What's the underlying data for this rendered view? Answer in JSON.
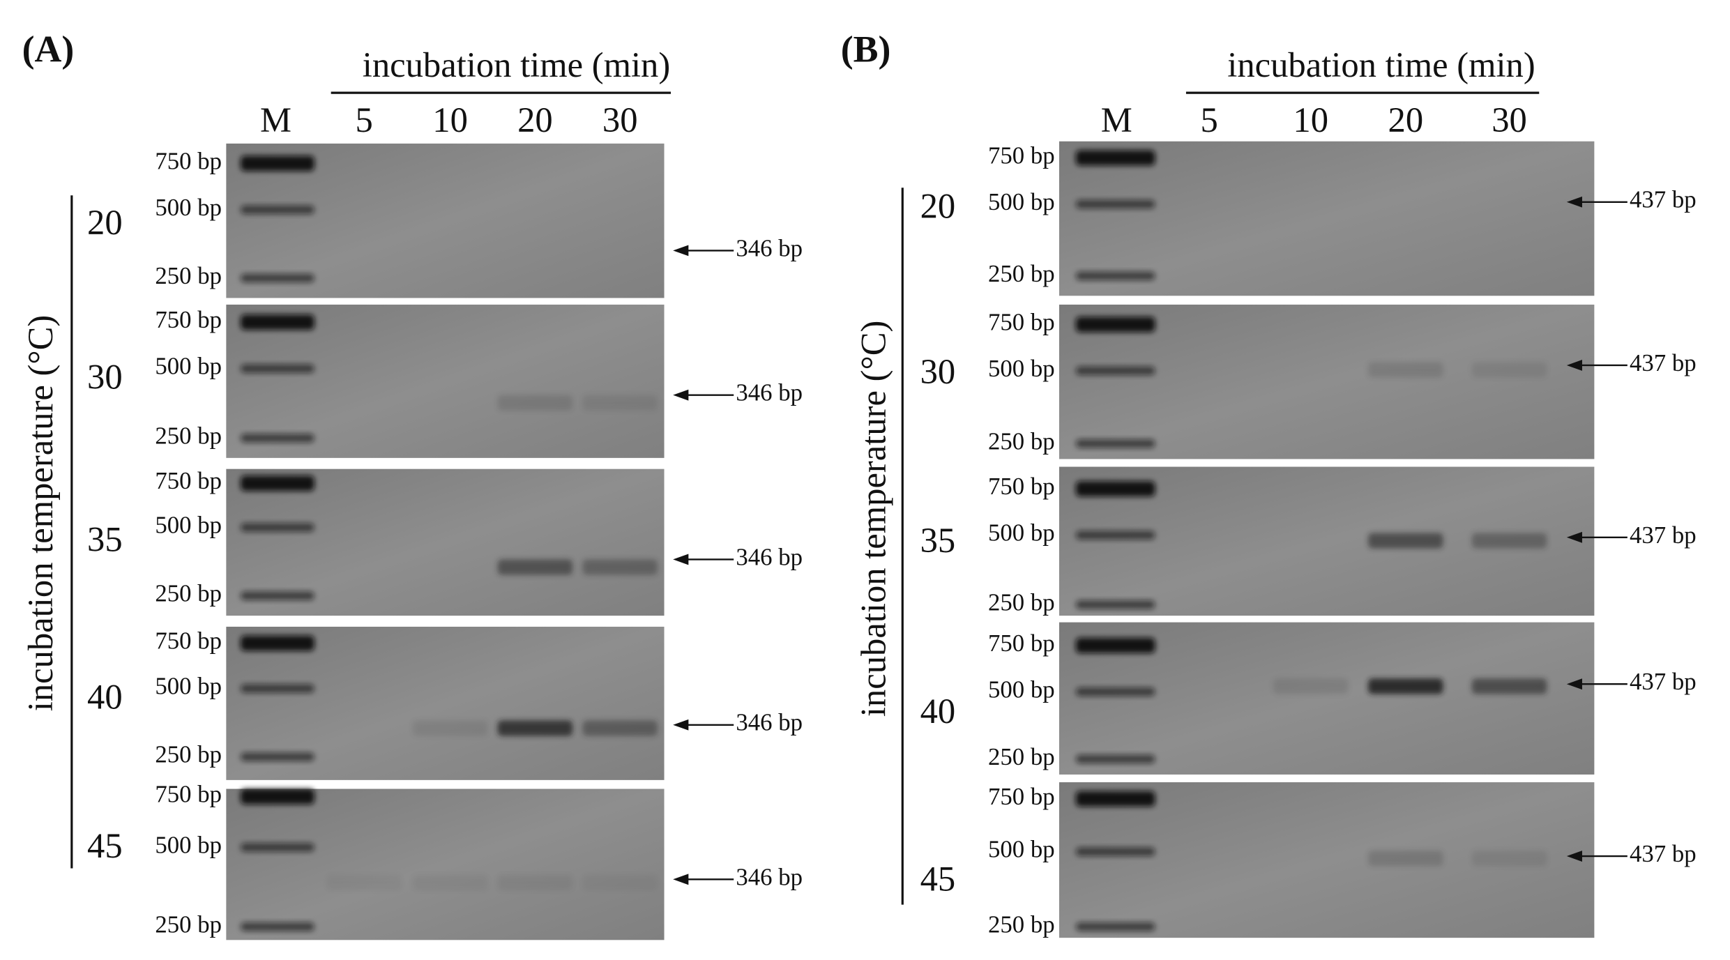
{
  "panels": [
    {
      "label": "(A)",
      "time_label": "incubation time (min)",
      "marker_label": "M",
      "times": [
        "5",
        "10",
        "20",
        "30"
      ],
      "temperature_label": "incubation temperature (°C)",
      "gels": [
        {
          "temperature": "20",
          "ladder": [
            "750 bp",
            "500 bp",
            "250 bp"
          ],
          "product": "346 bp"
        },
        {
          "temperature": "30",
          "ladder": [
            "750 bp",
            "500 bp",
            "250 bp"
          ],
          "product": "346 bp"
        },
        {
          "temperature": "35",
          "ladder": [
            "750 bp",
            "500 bp",
            "250 bp"
          ],
          "product": "346 bp"
        },
        {
          "temperature": "40",
          "ladder": [
            "750 bp",
            "500 bp",
            "250 bp"
          ],
          "product": "346 bp"
        },
        {
          "temperature": "45",
          "ladder": [
            "750 bp",
            "500 bp",
            "250 bp"
          ],
          "product": "346 bp"
        }
      ]
    },
    {
      "label": "(B)",
      "time_label": "incubation time (min)",
      "marker_label": "M",
      "times": [
        "5",
        "10",
        "20",
        "30"
      ],
      "temperature_label": "incubation temperature (°C)",
      "gels": [
        {
          "temperature": "20",
          "ladder": [
            "750 bp",
            "500 bp",
            "250 bp"
          ],
          "product": "437 bp"
        },
        {
          "temperature": "30",
          "ladder": [
            "750 bp",
            "500 bp",
            "250 bp"
          ],
          "product": "437 bp"
        },
        {
          "temperature": "35",
          "ladder": [
            "750 bp",
            "500 bp",
            "250 bp"
          ],
          "product": "437 bp"
        },
        {
          "temperature": "40",
          "ladder": [
            "750 bp",
            "500 bp",
            "250 bp"
          ],
          "product": "437 bp"
        },
        {
          "temperature": "45",
          "ladder": [
            "750 bp",
            "500 bp",
            "250 bp"
          ],
          "product": "437 bp"
        }
      ]
    }
  ]
}
